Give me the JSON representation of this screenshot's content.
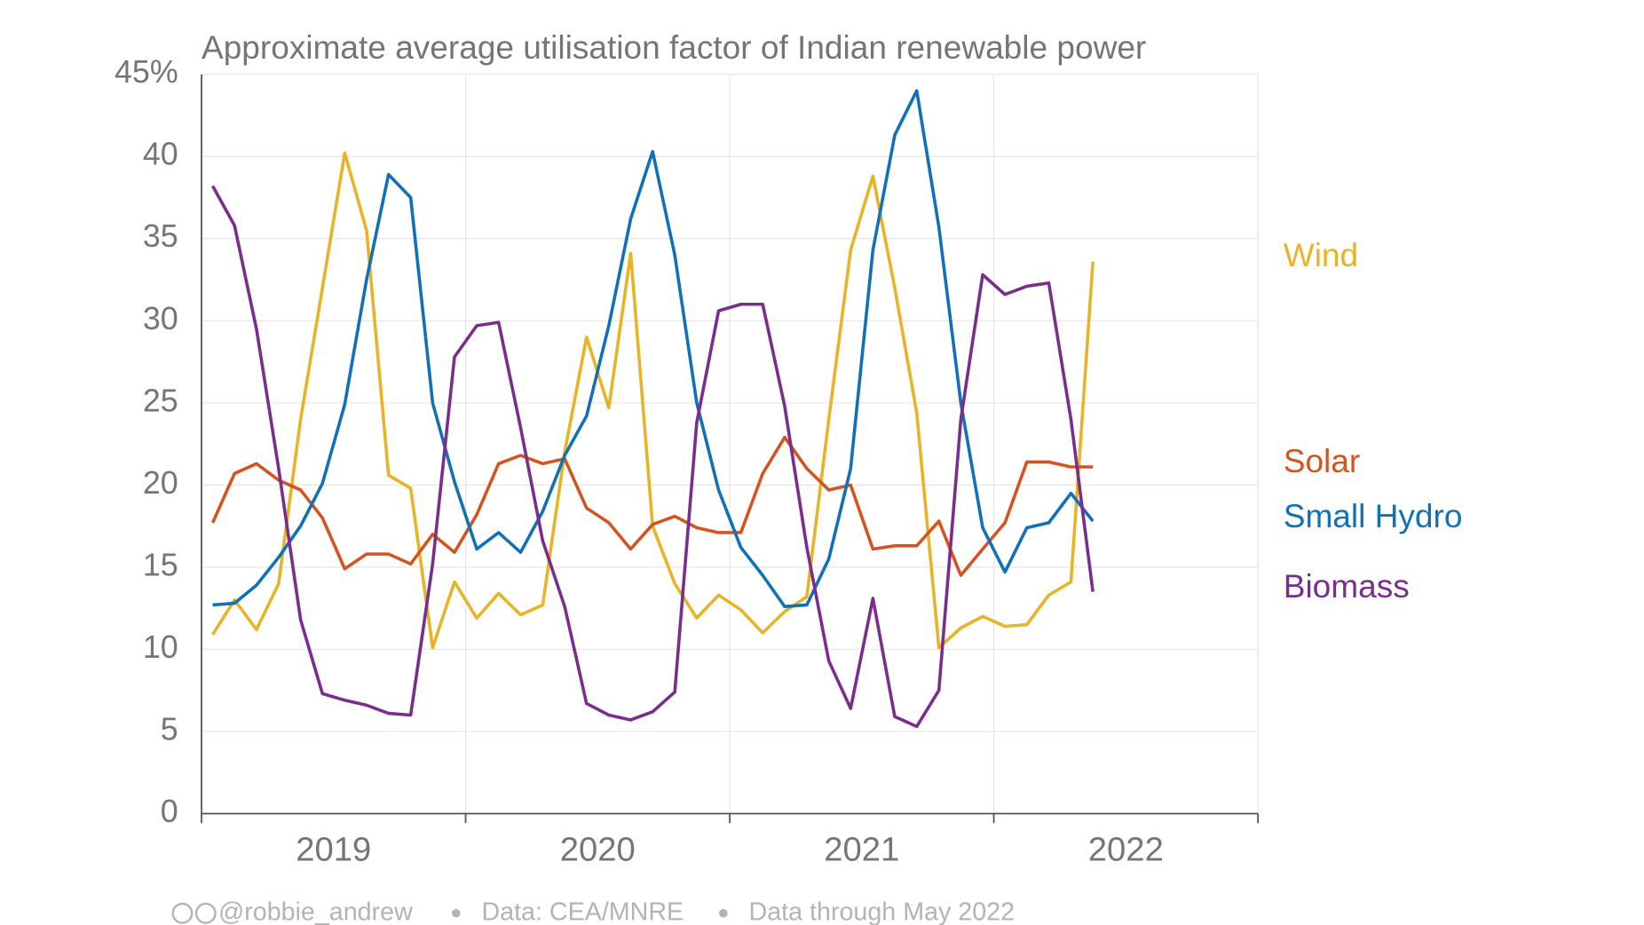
{
  "chart_data": {
    "type": "line",
    "title": "Approximate average utilisation factor of Indian renewable power",
    "x": [
      2019.042,
      2019.125,
      2019.208,
      2019.292,
      2019.375,
      2019.458,
      2019.542,
      2019.625,
      2019.708,
      2019.792,
      2019.875,
      2019.958,
      2020.042,
      2020.125,
      2020.208,
      2020.292,
      2020.375,
      2020.458,
      2020.542,
      2020.625,
      2020.708,
      2020.792,
      2020.875,
      2020.958,
      2021.042,
      2021.125,
      2021.208,
      2021.292,
      2021.375,
      2021.458,
      2021.542,
      2021.625,
      2021.708,
      2021.792,
      2021.875,
      2021.958,
      2022.042,
      2022.125,
      2022.208,
      2022.292,
      2022.375
    ],
    "series": [
      {
        "name": "Wind",
        "color": "#e8b325",
        "values": [
          10.9,
          13.0,
          11.2,
          14.0,
          24,
          32,
          40.2,
          35.5,
          20.6,
          19.8,
          10.1,
          14.1,
          11.9,
          13.4,
          12.1,
          12.7,
          22,
          29,
          24.7,
          34.1,
          17.5,
          14,
          11.9,
          13.3,
          12.4,
          11.0,
          12.3,
          13.2,
          24,
          34.3,
          38.8,
          32,
          24.4,
          10.1,
          11.3,
          12.0,
          11.4,
          11.5,
          13.3,
          14.1,
          33.6
        ]
      },
      {
        "name": "Solar",
        "color": "#d35420",
        "values": [
          17.7,
          20.7,
          21.3,
          20.3,
          19.7,
          18.0,
          14.9,
          15.8,
          15.8,
          15.2,
          17.0,
          15.9,
          18.2,
          21.3,
          21.8,
          21.3,
          21.6,
          18.6,
          17.7,
          16.1,
          17.6,
          18.1,
          17.4,
          17.1,
          17.1,
          20.7,
          22.9,
          21.0,
          19.7,
          20.0,
          16.1,
          16.3,
          16.3,
          17.8,
          14.5,
          16.1,
          17.7,
          21.4,
          21.4,
          21.1,
          21.1
        ]
      },
      {
        "name": "Small Hydro",
        "color": "#1070b8",
        "values": [
          12.7,
          12.8,
          13.9,
          15.6,
          17.5,
          20.1,
          24.9,
          32.5,
          38.9,
          37.5,
          25.0,
          20.2,
          16.1,
          17.1,
          15.9,
          18.4,
          21.8,
          24.2,
          29.7,
          36.2,
          40.3,
          34.0,
          25.0,
          19.7,
          16.2,
          14.5,
          12.6,
          12.7,
          15.5,
          21.0,
          34.3,
          41.3,
          44.0,
          35.7,
          25.0,
          17.4,
          14.7,
          17.4,
          17.7,
          19.5,
          17.8
        ]
      },
      {
        "name": "Biomass",
        "color": "#7b2d8e",
        "values": [
          38.2,
          35.8,
          29.5,
          21,
          11.8,
          7.3,
          6.9,
          6.6,
          6.1,
          6.0,
          15.2,
          27.8,
          29.7,
          29.9,
          23.5,
          16.6,
          12.6,
          6.7,
          6.0,
          5.7,
          6.2,
          7.4,
          23.8,
          30.6,
          31.0,
          31.0,
          24.8,
          16.2,
          9.3,
          6.4,
          13.1,
          5.9,
          5.3,
          7.5,
          24.0,
          32.8,
          31.6,
          32.1,
          32.3,
          24.0,
          13.5
        ]
      }
    ],
    "xlim": [
      2019,
      2023
    ],
    "xticks": [
      2019,
      2020,
      2021,
      2022,
      2023
    ],
    "xtick_labels": [
      2019,
      2020,
      2021,
      2022
    ],
    "ylim": [
      0,
      45
    ],
    "yticks": [
      0,
      5,
      10,
      15,
      20,
      25,
      30,
      35,
      40,
      {
        "value": 45,
        "label": "45%"
      }
    ],
    "grid": true,
    "footer": [
      "@robbie_andrew",
      "Data: CEA/MNRE",
      "Data through May 2022"
    ]
  }
}
